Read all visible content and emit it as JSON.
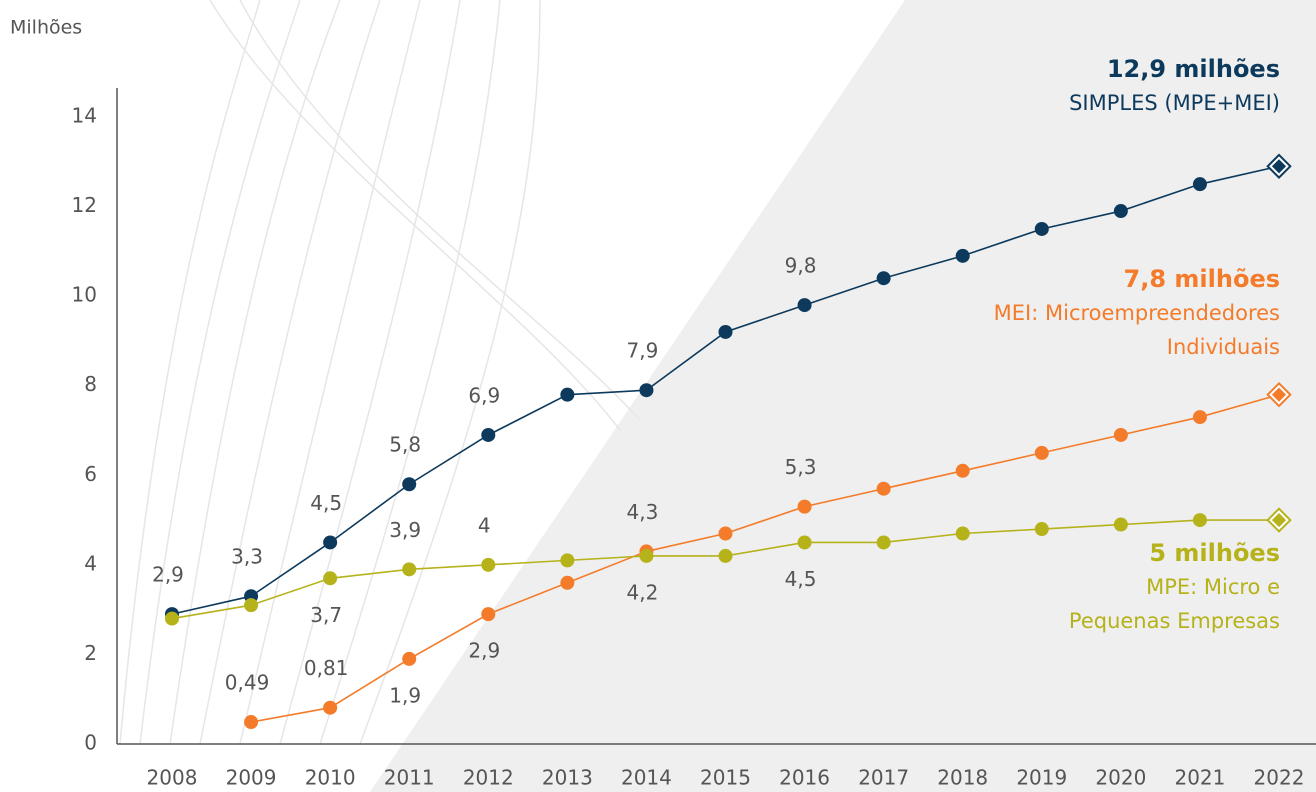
{
  "chart_data": {
    "type": "line",
    "y_label": "Milhões",
    "categories": [
      "2008",
      "2009",
      "2010",
      "2011",
      "2012",
      "2013",
      "2014",
      "2015",
      "2016",
      "2017",
      "2018",
      "2019",
      "2020",
      "2021",
      "2022"
    ],
    "ylim": [
      0,
      14
    ],
    "yticks": [
      0,
      2,
      4,
      6,
      8,
      10,
      12,
      14
    ],
    "series": [
      {
        "name": "SIMPLES (MPE+MEI)",
        "annotation": "12,9 milhões",
        "color": "#0d3a5c",
        "values": [
          2.9,
          3.3,
          4.5,
          5.8,
          6.9,
          7.8,
          7.9,
          9.2,
          9.8,
          10.4,
          10.9,
          11.5,
          11.9,
          12.5,
          12.9
        ],
        "value_labels": [
          "2,9",
          "3,3",
          "4,5",
          "5,8",
          "6,9",
          null,
          "7,9",
          null,
          "9,8",
          null,
          null,
          null,
          null,
          null,
          null
        ]
      },
      {
        "name": "MEI: Microempreendedores Individuais",
        "annotation": "7,8 milhões",
        "color": "#f47b2a",
        "values": [
          null,
          0.49,
          0.81,
          1.9,
          2.9,
          3.6,
          4.3,
          4.7,
          5.3,
          5.7,
          6.1,
          6.5,
          6.9,
          7.3,
          7.8
        ],
        "value_labels": [
          null,
          "0,49",
          "0,81",
          "1,9",
          "2,9",
          null,
          "4,3",
          null,
          "5,3",
          null,
          null,
          null,
          null,
          null,
          null
        ]
      },
      {
        "name": "MPE: Micro e Pequenas Empresas",
        "annotation": "5 milhões",
        "color": "#b5b21a",
        "values": [
          2.8,
          3.1,
          3.7,
          3.9,
          4,
          4.1,
          4.2,
          4.2,
          4.5,
          4.5,
          4.7,
          4.8,
          4.9,
          5.0,
          5.0
        ],
        "value_labels": [
          null,
          null,
          "3,7",
          "3,9",
          "4",
          null,
          "4,2",
          null,
          "4,5",
          null,
          null,
          null,
          null,
          null,
          null
        ]
      }
    ]
  }
}
